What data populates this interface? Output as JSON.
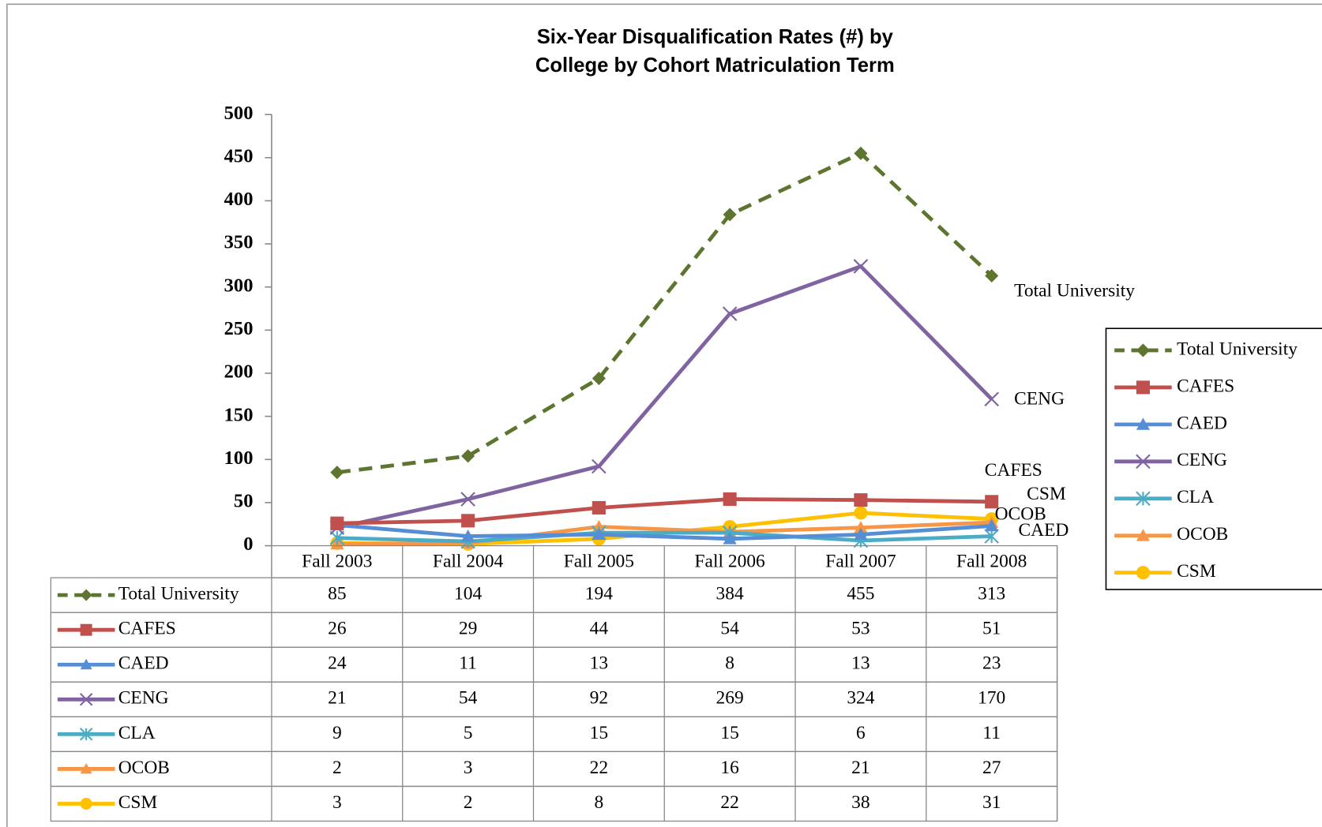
{
  "chart_data": {
    "type": "line",
    "title": [
      "Six-Year Disqualification Rates (#) by",
      "College by Cohort Matriculation Term"
    ],
    "categories": [
      "Fall 2003",
      "Fall 2004",
      "Fall 2005",
      "Fall 2006",
      "Fall 2007",
      "Fall 2008"
    ],
    "ylim": [
      0,
      500
    ],
    "yticks": [
      0,
      50,
      100,
      150,
      200,
      250,
      300,
      350,
      400,
      450,
      500
    ],
    "legend": "right",
    "series": [
      {
        "name": "Total University",
        "color": "#5e7530",
        "marker": "diamond",
        "dashed": true,
        "values": [
          85,
          104,
          194,
          384,
          455,
          313
        ]
      },
      {
        "name": "CAFES",
        "color": "#c0504d",
        "marker": "square",
        "values": [
          26,
          29,
          44,
          54,
          53,
          51
        ]
      },
      {
        "name": "CAED",
        "color": "#558ed5",
        "marker": "triangle",
        "values": [
          24,
          11,
          13,
          8,
          13,
          23
        ]
      },
      {
        "name": "CENG",
        "color": "#8064a2",
        "marker": "x",
        "values": [
          21,
          54,
          92,
          269,
          324,
          170
        ]
      },
      {
        "name": "CLA",
        "color": "#4bacc6",
        "marker": "star",
        "values": [
          9,
          5,
          15,
          15,
          6,
          11
        ]
      },
      {
        "name": "OCOB",
        "color": "#f79646",
        "marker": "triangle",
        "values": [
          2,
          3,
          22,
          16,
          21,
          27
        ]
      },
      {
        "name": "CSM",
        "color": "#ffc000",
        "marker": "circle",
        "values": [
          3,
          2,
          8,
          22,
          38,
          31
        ]
      }
    ]
  }
}
